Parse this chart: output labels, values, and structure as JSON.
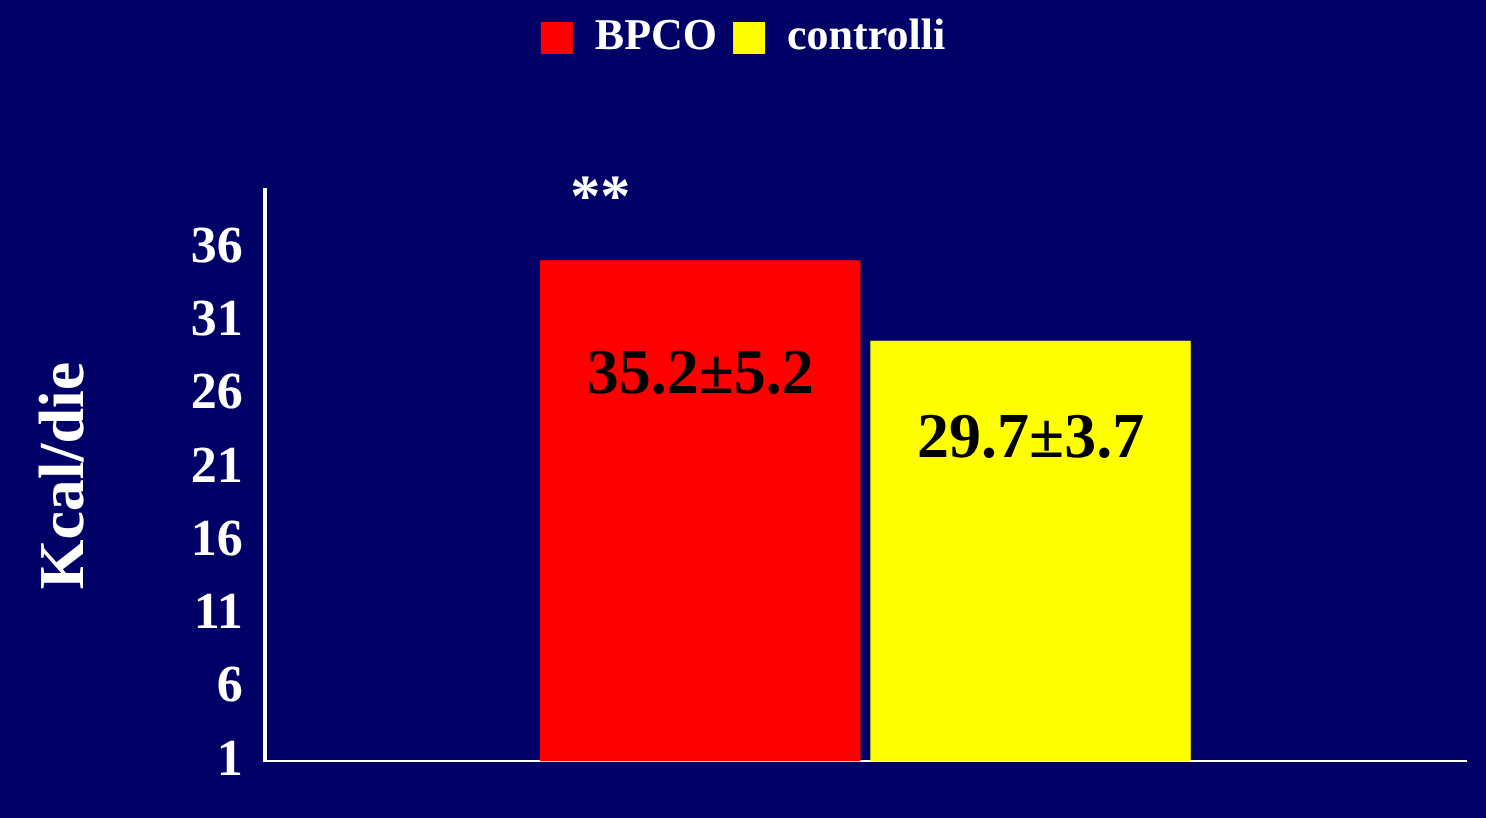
{
  "chart_data": {
    "type": "bar",
    "ylabel": "Kcal/die",
    "categories": [
      null
    ],
    "series": [
      {
        "name": "BPCO",
        "color": "#ff0000",
        "values": [
          35.2
        ],
        "value_labels": [
          "35.2±5.2"
        ]
      },
      {
        "name": "controlli",
        "color": "#ffff00",
        "values": [
          29.7
        ],
        "value_labels": [
          "29.7±3.7"
        ]
      }
    ],
    "ylim": [
      1,
      40
    ],
    "yticks": [
      1,
      6,
      11,
      16,
      21,
      26,
      31,
      36
    ],
    "grid": false,
    "legend": "top",
    "annotations": [
      "**"
    ]
  }
}
